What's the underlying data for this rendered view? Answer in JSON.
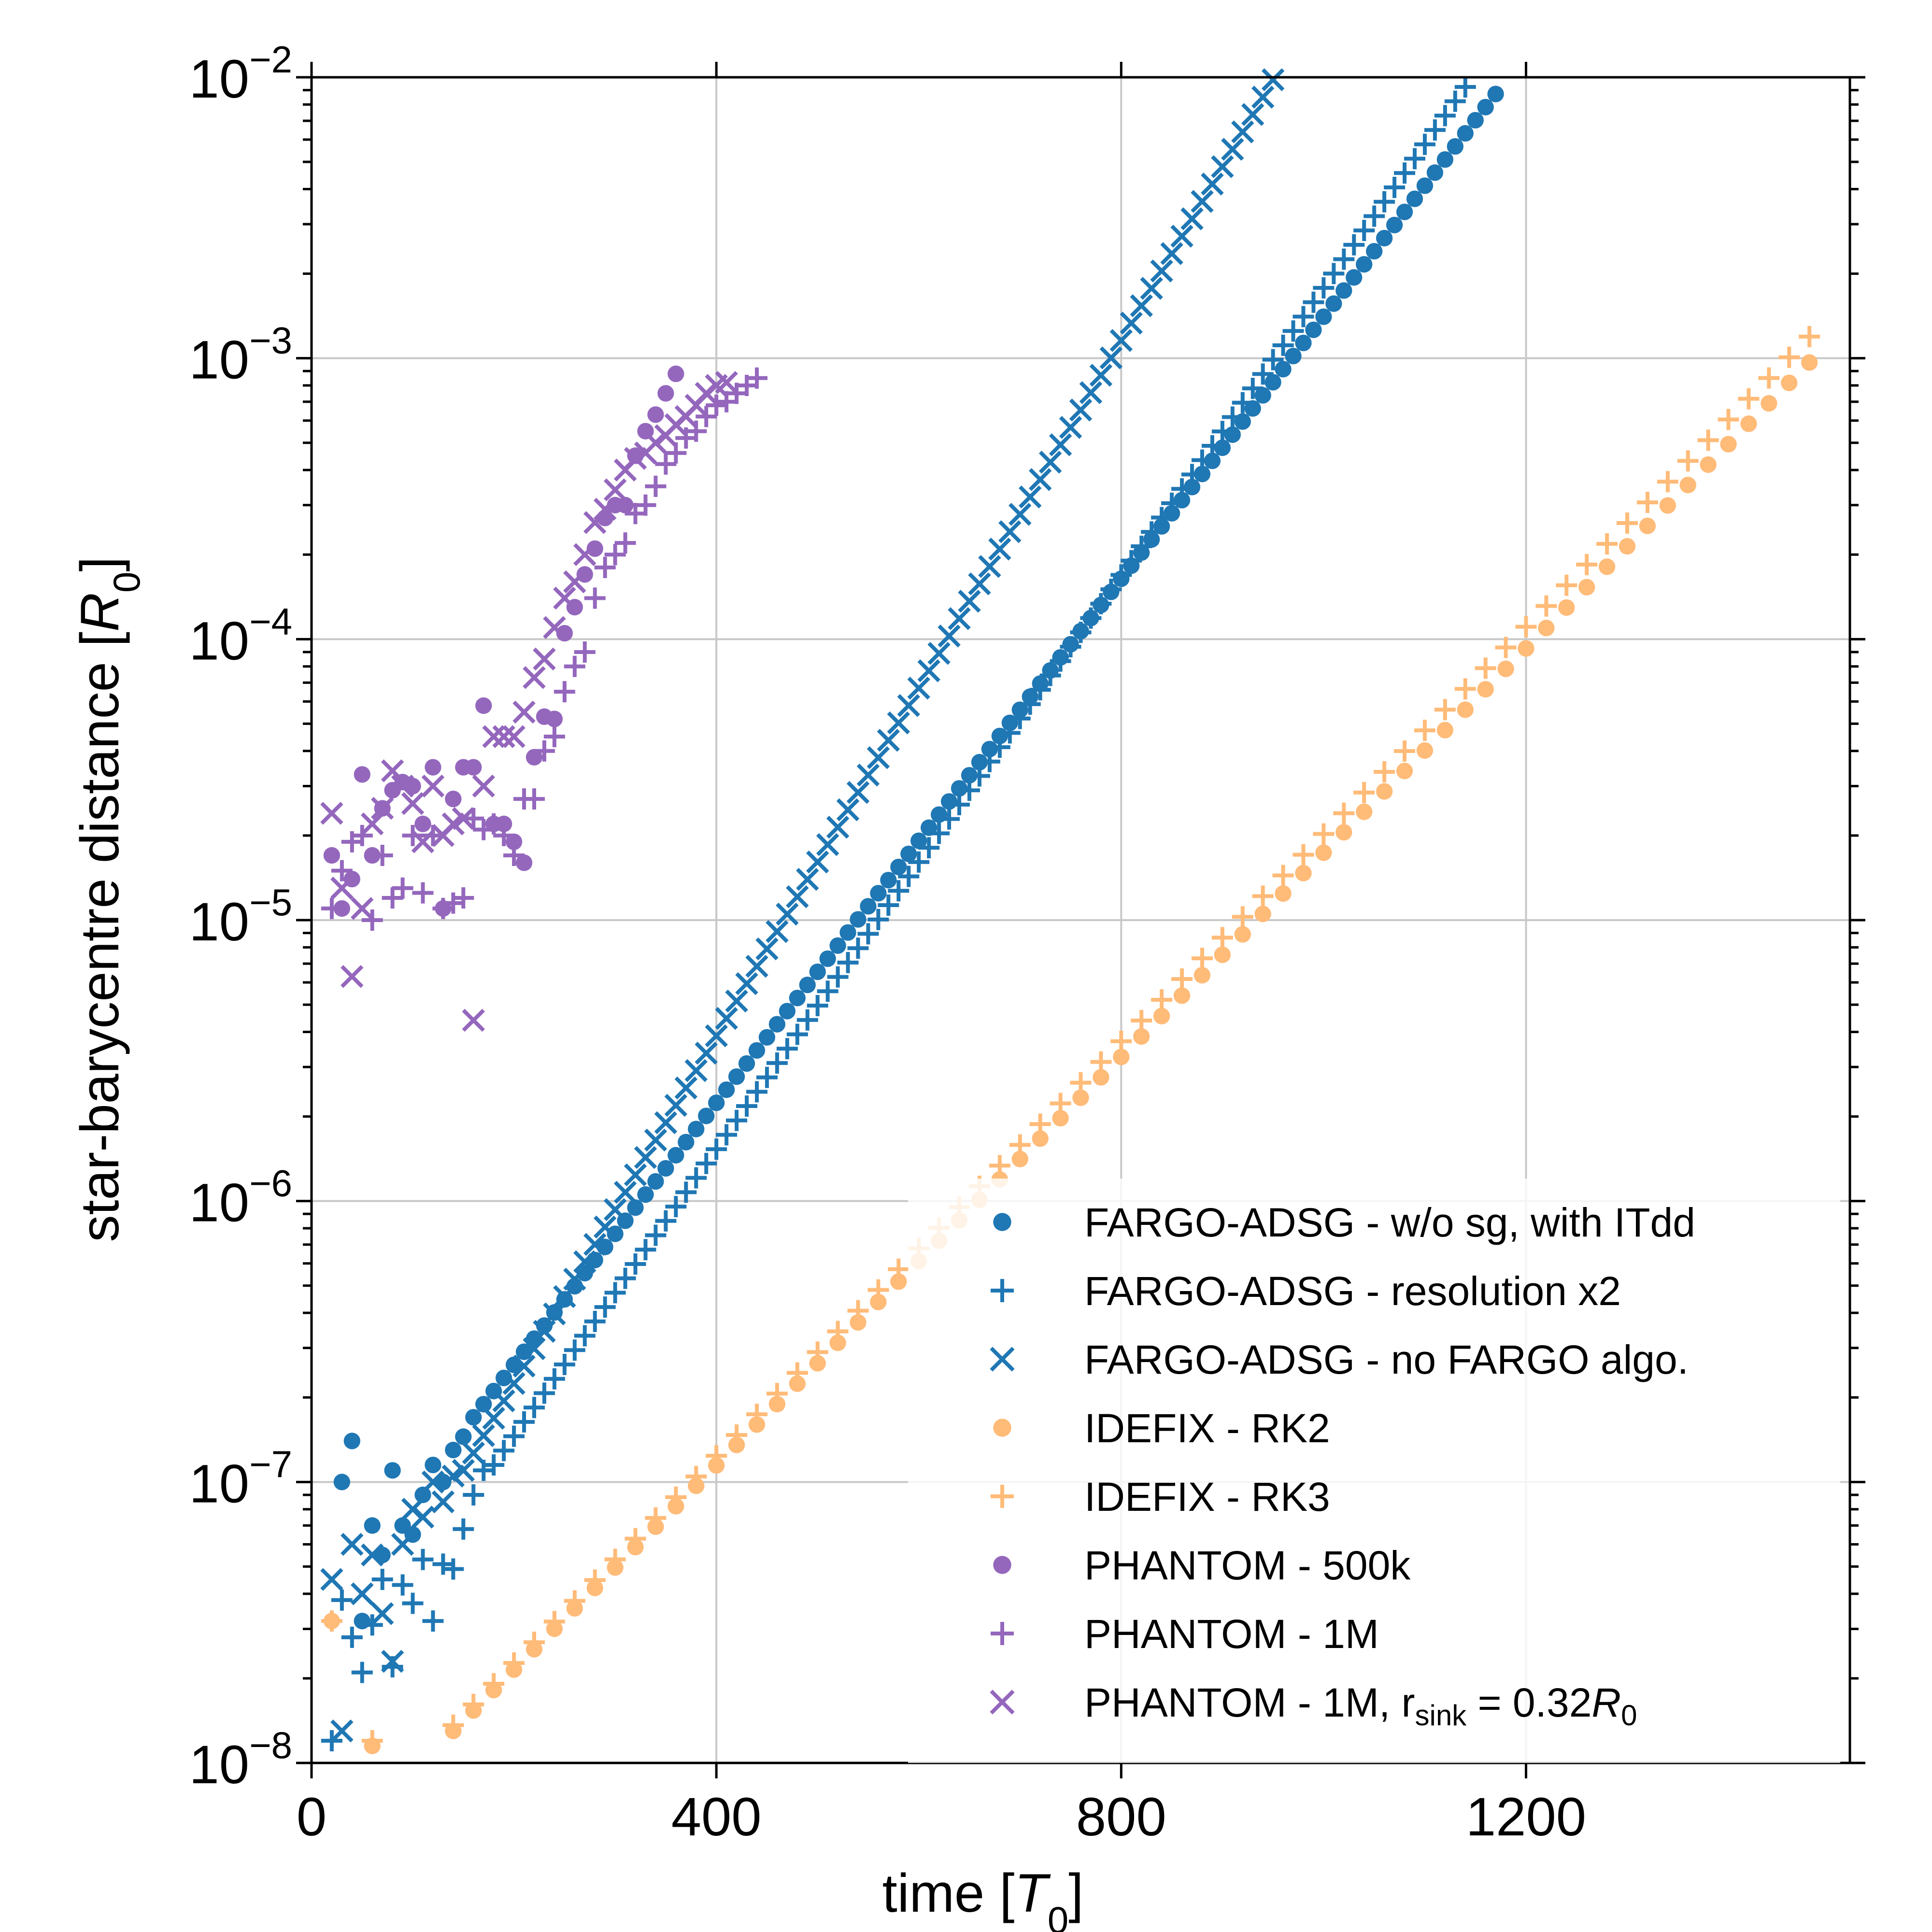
{
  "chart_data": {
    "type": "scatter",
    "title": "",
    "xlabel_text": "time [",
    "xlabel_symbol": "T",
    "xlabel_sub": "0",
    "xlabel_close": "]",
    "ylabel_text": "star-barycentre distance [",
    "ylabel_symbol": "R",
    "ylabel_sub": "0",
    "ylabel_close": "]",
    "xlim": [
      0,
      1520
    ],
    "ylim": [
      1e-08,
      0.01
    ],
    "yscale": "log",
    "grid": true,
    "legend_position": "bottom-right",
    "xticks": [
      {
        "value": 0,
        "label": "0"
      },
      {
        "value": 400,
        "label": "400"
      },
      {
        "value": 800,
        "label": "800"
      },
      {
        "value": 1200,
        "label": "1200"
      }
    ],
    "yticks": [
      {
        "value": 1e-08,
        "base": "10",
        "exp": "−8"
      },
      {
        "value": 1e-07,
        "base": "10",
        "exp": "−7"
      },
      {
        "value": 1e-06,
        "base": "10",
        "exp": "−6"
      },
      {
        "value": 1e-05,
        "base": "10",
        "exp": "−5"
      },
      {
        "value": 0.0001,
        "base": "10",
        "exp": "−4"
      },
      {
        "value": 0.001,
        "base": "10",
        "exp": "−3"
      },
      {
        "value": 0.01,
        "base": "10",
        "exp": "−2"
      }
    ],
    "series": [
      {
        "name": "FARGO-ADSG - w/o sg, with ITdd",
        "marker": "dot",
        "color": "#1f77b4",
        "points": [
          [
            30,
            1e-07
          ],
          [
            40,
            1.4e-07
          ],
          [
            50,
            3.2e-08
          ],
          [
            60,
            7e-08
          ],
          [
            70,
            5.5e-08
          ],
          [
            80,
            1.1e-07
          ],
          [
            90,
            7e-08
          ],
          [
            100,
            6.5e-08
          ],
          [
            110,
            9e-08
          ],
          [
            120,
            1.15e-07
          ],
          [
            130,
            1e-07
          ],
          [
            140,
            1.3e-07
          ],
          [
            150,
            1.45e-07
          ],
          [
            160,
            1.7e-07
          ]
        ],
        "trend": {
          "x0": 160,
          "y0": 1.7e-07,
          "x1": 1175,
          "y1": 0.0092,
          "step": 10
        }
      },
      {
        "name": "FARGO-ADSG - resolution x2",
        "marker": "plus",
        "color": "#1f77b4",
        "points": [
          [
            20,
            1.2e-08
          ],
          [
            30,
            3.8e-08
          ],
          [
            40,
            2.8e-08
          ],
          [
            50,
            2.1e-08
          ],
          [
            60,
            3.1e-08
          ],
          [
            70,
            4.5e-08
          ],
          [
            80,
            2.2e-08
          ],
          [
            90,
            4.3e-08
          ],
          [
            100,
            3.7e-08
          ],
          [
            110,
            5.3e-08
          ],
          [
            120,
            3.2e-08
          ],
          [
            130,
            5.1e-08
          ],
          [
            140,
            4.9e-08
          ],
          [
            150,
            6.8e-08
          ],
          [
            160,
            9e-08
          ],
          [
            170,
            1.1e-07
          ],
          [
            180,
            1.15e-07
          ]
        ],
        "trend": {
          "x0": 180,
          "y0": 1.15e-07,
          "x1": 1145,
          "y1": 0.0098,
          "step": 10
        }
      },
      {
        "name": "FARGO-ADSG - no FARGO algo.",
        "marker": "x",
        "color": "#1f77b4",
        "points": [
          [
            20,
            4.5e-08
          ],
          [
            30,
            1.3e-08
          ],
          [
            40,
            6e-08
          ],
          [
            50,
            4e-08
          ],
          [
            60,
            5.5e-08
          ],
          [
            70,
            3.4e-08
          ],
          [
            80,
            2.3e-08
          ],
          [
            90,
            6e-08
          ],
          [
            100,
            8e-08
          ],
          [
            110,
            7.5e-08
          ],
          [
            120,
            1e-07
          ],
          [
            130,
            8.5e-08
          ],
          [
            140,
            1.05e-07
          ],
          [
            150,
            1.1e-07
          ]
        ],
        "trend": {
          "x0": 150,
          "y0": 1.1e-07,
          "x1": 950,
          "y1": 0.0098,
          "step": 10
        }
      },
      {
        "name": "IDEFIX - RK2",
        "marker": "dot",
        "color": "#ffbb78",
        "points": [
          [
            20,
            3.2e-08
          ],
          [
            60,
            1.15e-08
          ]
        ],
        "trend": {
          "x0": 120,
          "y0": 1.1e-08,
          "x1": 1490,
          "y1": 0.00105,
          "step": 20
        }
      },
      {
        "name": "IDEFIX - RK3",
        "marker": "plus",
        "color": "#ffbb78",
        "points": [
          [
            20,
            3.2e-08
          ],
          [
            60,
            1.2e-08
          ]
        ],
        "trend": {
          "x0": 120,
          "y0": 1.15e-08,
          "x1": 1490,
          "y1": 0.0013,
          "step": 20
        }
      },
      {
        "name": "PHANTOM - 500k",
        "marker": "dot",
        "color": "#9467bd",
        "points": [
          [
            20,
            1.7e-05
          ],
          [
            30,
            1.1e-05
          ],
          [
            40,
            1.4e-05
          ],
          [
            50,
            3.3e-05
          ],
          [
            60,
            1.7e-05
          ],
          [
            70,
            2.5e-05
          ],
          [
            80,
            2.9e-05
          ],
          [
            90,
            3.1e-05
          ],
          [
            100,
            3e-05
          ],
          [
            110,
            2.2e-05
          ],
          [
            120,
            3.5e-05
          ],
          [
            130,
            1.1e-05
          ],
          [
            140,
            2.7e-05
          ],
          [
            150,
            3.5e-05
          ],
          [
            160,
            3.5e-05
          ],
          [
            170,
            5.8e-05
          ],
          [
            180,
            2.2e-05
          ],
          [
            190,
            2.2e-05
          ],
          [
            200,
            1.9e-05
          ],
          [
            210,
            1.6e-05
          ],
          [
            220,
            3.8e-05
          ],
          [
            230,
            5.3e-05
          ],
          [
            240,
            5.2e-05
          ],
          [
            250,
            0.000105
          ],
          [
            260,
            0.00013
          ],
          [
            270,
            0.00017
          ],
          [
            280,
            0.00021
          ],
          [
            290,
            0.00027
          ],
          [
            300,
            0.0003
          ],
          [
            310,
            0.0003
          ],
          [
            320,
            0.00045
          ],
          [
            330,
            0.00055
          ],
          [
            340,
            0.00063
          ],
          [
            350,
            0.00075
          ],
          [
            360,
            0.00088
          ]
        ]
      },
      {
        "name": "PHANTOM - 1M",
        "marker": "plus",
        "color": "#9467bd",
        "points": [
          [
            20,
            1.1e-05
          ],
          [
            30,
            1.5e-05
          ],
          [
            40,
            1.9e-05
          ],
          [
            50,
            2e-05
          ],
          [
            60,
            1e-05
          ],
          [
            70,
            1.7e-05
          ],
          [
            80,
            1.2e-05
          ],
          [
            90,
            1.3e-05
          ],
          [
            100,
            2e-05
          ],
          [
            110,
            1.25e-05
          ],
          [
            120,
            2e-05
          ],
          [
            130,
            1.1e-05
          ],
          [
            140,
            1.15e-05
          ],
          [
            150,
            1.2e-05
          ],
          [
            160,
            2.3e-05
          ],
          [
            170,
            2.1e-05
          ],
          [
            180,
            2.2e-05
          ],
          [
            190,
            2e-05
          ],
          [
            200,
            1.7e-05
          ],
          [
            210,
            2.7e-05
          ],
          [
            220,
            2.7e-05
          ],
          [
            230,
            4e-05
          ],
          [
            240,
            4.5e-05
          ],
          [
            250,
            6.5e-05
          ],
          [
            260,
            8e-05
          ],
          [
            270,
            9e-05
          ],
          [
            280,
            0.00014
          ],
          [
            290,
            0.00018
          ],
          [
            300,
            0.0002
          ],
          [
            310,
            0.00022
          ],
          [
            320,
            0.00028
          ],
          [
            330,
            0.0003
          ],
          [
            340,
            0.00035
          ],
          [
            350,
            0.00042
          ],
          [
            360,
            0.00046
          ],
          [
            370,
            0.00052
          ],
          [
            380,
            0.00055
          ],
          [
            390,
            0.00062
          ],
          [
            400,
            0.00068
          ],
          [
            410,
            0.0007
          ],
          [
            420,
            0.00075
          ],
          [
            430,
            0.0008
          ],
          [
            440,
            0.00085
          ]
        ]
      },
      {
        "name": "PHANTOM - 1M, r_sink = 0.32R_0",
        "marker": "x",
        "color": "#9467bd",
        "points": [
          [
            20,
            2.4e-05
          ],
          [
            30,
            1.3e-05
          ],
          [
            40,
            6.3e-06
          ],
          [
            50,
            1.1e-05
          ],
          [
            60,
            2.2e-05
          ],
          [
            70,
            2.5e-05
          ],
          [
            80,
            3.4e-05
          ],
          [
            90,
            3e-05
          ],
          [
            100,
            2.6e-05
          ],
          [
            110,
            1.9e-05
          ],
          [
            120,
            3e-05
          ],
          [
            130,
            2e-05
          ],
          [
            140,
            2.2e-05
          ],
          [
            150,
            2.3e-05
          ],
          [
            160,
            4.4e-06
          ],
          [
            170,
            3e-05
          ],
          [
            180,
            4.5e-05
          ],
          [
            190,
            4.5e-05
          ],
          [
            200,
            4.5e-05
          ],
          [
            210,
            5.5e-05
          ],
          [
            220,
            7.3e-05
          ],
          [
            230,
            8.5e-05
          ],
          [
            240,
            0.00011
          ],
          [
            250,
            0.00014
          ],
          [
            260,
            0.00016
          ],
          [
            270,
            0.0002
          ],
          [
            280,
            0.00026
          ],
          [
            290,
            0.00029
          ],
          [
            300,
            0.00034
          ],
          [
            310,
            0.0004
          ],
          [
            320,
            0.00044
          ],
          [
            330,
            0.00046
          ],
          [
            340,
            0.0005
          ],
          [
            350,
            0.00053
          ],
          [
            360,
            0.00058
          ],
          [
            370,
            0.00062
          ],
          [
            380,
            0.00068
          ],
          [
            390,
            0.00075
          ],
          [
            400,
            0.0008
          ],
          [
            410,
            0.00082
          ]
        ]
      }
    ],
    "legend": [
      {
        "marker": "dot",
        "color": "#1f77b4",
        "label": "FARGO-ADSG - w/o sg, with ITdd"
      },
      {
        "marker": "plus",
        "color": "#1f77b4",
        "label": "FARGO-ADSG - resolution x2"
      },
      {
        "marker": "x",
        "color": "#1f77b4",
        "label": "FARGO-ADSG - no FARGO algo."
      },
      {
        "marker": "dot",
        "color": "#ffbb78",
        "label": "IDEFIX - RK2"
      },
      {
        "marker": "plus",
        "color": "#ffbb78",
        "label": "IDEFIX - RK3"
      },
      {
        "marker": "dot",
        "color": "#9467bd",
        "label": "PHANTOM - 500k"
      },
      {
        "marker": "plus",
        "color": "#9467bd",
        "label": "PHANTOM - 1M"
      },
      {
        "marker": "x",
        "color": "#9467bd",
        "label": "PHANTOM - 1M, ",
        "label_r": "r",
        "label_sub": "sink",
        "label_eq": " = 0.32",
        "label_R": "R",
        "label_R_sub": "0"
      }
    ]
  }
}
